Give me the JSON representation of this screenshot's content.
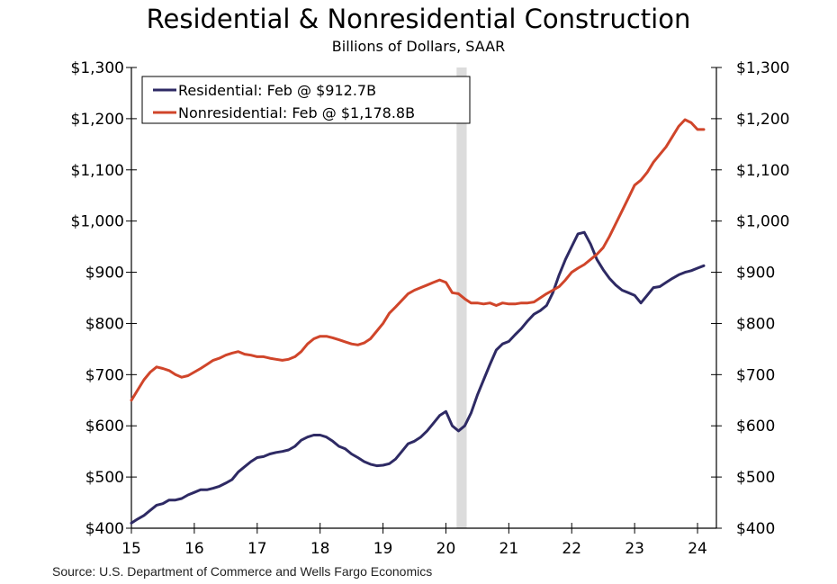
{
  "chart_data": {
    "type": "line",
    "title": "Residential & Nonresidential Construction",
    "subtitle": "Billions of Dollars, SAAR",
    "source": "Source: U.S. Department of Commerce and Wells Fargo Economics",
    "xlim": [
      2015.0,
      2024.3
    ],
    "ylim": [
      400,
      1300
    ],
    "y_ticks": [
      400,
      500,
      600,
      700,
      800,
      900,
      1000,
      1100,
      1200,
      1300
    ],
    "y_tick_labels": [
      "$400",
      "$500",
      "$600",
      "$700",
      "$800",
      "$900",
      "$1,000",
      "$1,100",
      "$1,200",
      "$1,300"
    ],
    "x_ticks": [
      2015,
      2016,
      2017,
      2018,
      2019,
      2020,
      2021,
      2022,
      2023,
      2024
    ],
    "x_tick_labels": [
      "15",
      "16",
      "17",
      "18",
      "19",
      "20",
      "21",
      "22",
      "23",
      "24"
    ],
    "grid": false,
    "legend_position": "top-left",
    "recession": {
      "start": 2020.17,
      "end": 2020.33,
      "color": "#dcdcdc"
    },
    "series": [
      {
        "name": "Residential: Feb @ $912.7B",
        "color": "#2e2a64",
        "x": [
          2015.0,
          2015.1,
          2015.2,
          2015.3,
          2015.4,
          2015.5,
          2015.6,
          2015.7,
          2015.8,
          2015.9,
          2016.0,
          2016.1,
          2016.2,
          2016.3,
          2016.4,
          2016.5,
          2016.6,
          2016.7,
          2016.8,
          2016.9,
          2017.0,
          2017.1,
          2017.2,
          2017.3,
          2017.4,
          2017.5,
          2017.6,
          2017.7,
          2017.8,
          2017.9,
          2018.0,
          2018.1,
          2018.2,
          2018.3,
          2018.4,
          2018.5,
          2018.6,
          2018.7,
          2018.8,
          2018.9,
          2019.0,
          2019.1,
          2019.2,
          2019.3,
          2019.4,
          2019.5,
          2019.6,
          2019.7,
          2019.8,
          2019.9,
          2020.0,
          2020.1,
          2020.2,
          2020.3,
          2020.4,
          2020.5,
          2020.6,
          2020.7,
          2020.8,
          2020.9,
          2021.0,
          2021.1,
          2021.2,
          2021.3,
          2021.4,
          2021.5,
          2021.6,
          2021.7,
          2021.8,
          2021.9,
          2022.0,
          2022.1,
          2022.2,
          2022.3,
          2022.4,
          2022.5,
          2022.6,
          2022.7,
          2022.8,
          2022.9,
          2023.0,
          2023.1,
          2023.2,
          2023.3,
          2023.4,
          2023.5,
          2023.6,
          2023.7,
          2023.8,
          2023.9,
          2024.0,
          2024.1
        ],
        "values": [
          410,
          418,
          425,
          435,
          445,
          448,
          455,
          455,
          458,
          465,
          470,
          475,
          475,
          478,
          482,
          488,
          495,
          510,
          520,
          530,
          538,
          540,
          545,
          548,
          550,
          553,
          560,
          572,
          578,
          582,
          582,
          578,
          570,
          560,
          555,
          545,
          538,
          530,
          525,
          522,
          523,
          526,
          535,
          550,
          565,
          570,
          578,
          590,
          605,
          620,
          628,
          600,
          590,
          600,
          625,
          660,
          690,
          720,
          748,
          760,
          765,
          778,
          790,
          805,
          818,
          825,
          835,
          860,
          895,
          925,
          950,
          975,
          978,
          955,
          925,
          905,
          888,
          875,
          865,
          860,
          855,
          840,
          855,
          870,
          872,
          880,
          888,
          895,
          900,
          903,
          908,
          912.7
        ]
      },
      {
        "name": "Nonresidential: Feb @ $1,178.8B",
        "color": "#d0452a",
        "x": [
          2015.0,
          2015.1,
          2015.2,
          2015.3,
          2015.4,
          2015.5,
          2015.6,
          2015.7,
          2015.8,
          2015.9,
          2016.0,
          2016.1,
          2016.2,
          2016.3,
          2016.4,
          2016.5,
          2016.6,
          2016.7,
          2016.8,
          2016.9,
          2017.0,
          2017.1,
          2017.2,
          2017.3,
          2017.4,
          2017.5,
          2017.6,
          2017.7,
          2017.8,
          2017.9,
          2018.0,
          2018.1,
          2018.2,
          2018.3,
          2018.4,
          2018.5,
          2018.6,
          2018.7,
          2018.8,
          2018.9,
          2019.0,
          2019.1,
          2019.2,
          2019.3,
          2019.4,
          2019.5,
          2019.6,
          2019.7,
          2019.8,
          2019.9,
          2020.0,
          2020.1,
          2020.2,
          2020.3,
          2020.4,
          2020.5,
          2020.6,
          2020.7,
          2020.8,
          2020.9,
          2021.0,
          2021.1,
          2021.2,
          2021.3,
          2021.4,
          2021.5,
          2021.6,
          2021.7,
          2021.8,
          2021.9,
          2022.0,
          2022.1,
          2022.2,
          2022.3,
          2022.4,
          2022.5,
          2022.6,
          2022.7,
          2022.8,
          2022.9,
          2023.0,
          2023.1,
          2023.2,
          2023.3,
          2023.4,
          2023.5,
          2023.6,
          2023.7,
          2023.8,
          2023.9,
          2024.0,
          2024.1
        ],
        "values": [
          650,
          670,
          690,
          705,
          715,
          712,
          708,
          700,
          695,
          698,
          705,
          712,
          720,
          728,
          732,
          738,
          742,
          745,
          740,
          738,
          735,
          735,
          732,
          730,
          728,
          730,
          735,
          745,
          760,
          770,
          775,
          775,
          772,
          768,
          764,
          760,
          758,
          762,
          770,
          785,
          800,
          820,
          832,
          845,
          858,
          865,
          870,
          875,
          880,
          885,
          880,
          860,
          858,
          848,
          840,
          840,
          838,
          840,
          835,
          840,
          838,
          838,
          840,
          840,
          842,
          850,
          858,
          865,
          872,
          885,
          900,
          908,
          915,
          925,
          935,
          948,
          970,
          995,
          1020,
          1045,
          1070,
          1080,
          1095,
          1115,
          1130,
          1145,
          1165,
          1185,
          1198,
          1192,
          1178.8,
          1178.8
        ]
      }
    ]
  }
}
